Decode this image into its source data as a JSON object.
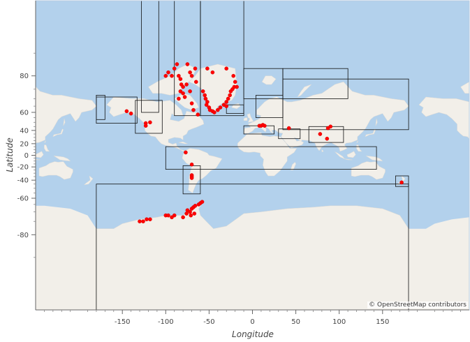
{
  "map": {
    "attribution": "© OpenStreetMap contributors",
    "xlabel": "Longitude",
    "ylabel": "Latitude",
    "ocean_color": "#b3d1ec",
    "land_color": "#f2efe9",
    "point_color": "#ff0000",
    "xlim": [
      -250,
      250
    ],
    "ylim_mercator_deg": [
      -89,
      89
    ],
    "x_ticks": [
      "-150",
      "-100",
      "-50",
      "0",
      "50",
      "100",
      "150"
    ],
    "y_ticks": [
      "80",
      "60",
      "40",
      "20",
      "0",
      "-20",
      "-40",
      "-60",
      "-80"
    ]
  },
  "chart_data": {
    "type": "scatter",
    "xlabel": "Longitude",
    "ylabel": "Latitude",
    "regions": [
      {
        "lon": [
          -180,
          -170
        ],
        "lat": [
          53,
          72
        ]
      },
      {
        "lon": [
          -180,
          -133
        ],
        "lat": [
          49,
          71
        ]
      },
      {
        "lon": [
          -135,
          -104
        ],
        "lat": [
          36,
          69
        ]
      },
      {
        "lon": [
          -128,
          -108
        ],
        "lat": [
          60,
          89
        ]
      },
      {
        "lon": [
          -90,
          -60
        ],
        "lat": [
          57,
          89
        ]
      },
      {
        "lon": [
          -60,
          -10
        ],
        "lat": [
          57,
          89
        ]
      },
      {
        "lon": [
          -30,
          -10
        ],
        "lat": [
          59,
          66
        ]
      },
      {
        "lon": [
          -10,
          35
        ],
        "lat": [
          70,
          82
        ]
      },
      {
        "lon": [
          35,
          110
        ],
        "lat": [
          70,
          82
        ]
      },
      {
        "lon": [
          4,
          35
        ],
        "lat": [
          55,
          72
        ]
      },
      {
        "lon": [
          35,
          180
        ],
        "lat": [
          41,
          79
        ]
      },
      {
        "lon": [
          -10,
          25
        ],
        "lat": [
          35,
          46
        ]
      },
      {
        "lon": [
          30,
          55
        ],
        "lat": [
          28,
          42
        ]
      },
      {
        "lon": [
          65,
          105
        ],
        "lat": [
          22,
          45
        ]
      },
      {
        "lon": [
          -100,
          143
        ],
        "lat": [
          -24,
          15
        ]
      },
      {
        "lon": [
          -80,
          -60
        ],
        "lat": [
          -56,
          -18
        ]
      },
      {
        "lon": [
          -180,
          180
        ],
        "lat": [
          -89,
          -45
        ]
      },
      {
        "lon": [
          165,
          180
        ],
        "lat": [
          -48,
          -34
        ]
      }
    ],
    "points": [
      {
        "lon": -145,
        "lat": 61
      },
      {
        "lon": -140,
        "lat": 59
      },
      {
        "lon": -123,
        "lat": 49
      },
      {
        "lon": -123,
        "lat": 46
      },
      {
        "lon": -118,
        "lat": 50
      },
      {
        "lon": -100,
        "lat": 80
      },
      {
        "lon": -97,
        "lat": 81
      },
      {
        "lon": -93,
        "lat": 80
      },
      {
        "lon": -90,
        "lat": 82
      },
      {
        "lon": -87,
        "lat": 83
      },
      {
        "lon": -85,
        "lat": 80
      },
      {
        "lon": -83,
        "lat": 79
      },
      {
        "lon": -82,
        "lat": 77
      },
      {
        "lon": -80,
        "lat": 76
      },
      {
        "lon": -83,
        "lat": 74
      },
      {
        "lon": -80,
        "lat": 73
      },
      {
        "lon": -85,
        "lat": 70
      },
      {
        "lon": -78,
        "lat": 71
      },
      {
        "lon": -75,
        "lat": 83
      },
      {
        "lon": -72,
        "lat": 81
      },
      {
        "lon": -70,
        "lat": 80
      },
      {
        "lon": -76,
        "lat": 77
      },
      {
        "lon": -72,
        "lat": 74
      },
      {
        "lon": -66,
        "lat": 82
      },
      {
        "lon": -65,
        "lat": 78
      },
      {
        "lon": -70,
        "lat": 67
      },
      {
        "lon": -68,
        "lat": 62
      },
      {
        "lon": -63,
        "lat": 58
      },
      {
        "lon": -52,
        "lat": 82
      },
      {
        "lon": -46,
        "lat": 81
      },
      {
        "lon": -30,
        "lat": 82
      },
      {
        "lon": -22,
        "lat": 80
      },
      {
        "lon": -20,
        "lat": 78
      },
      {
        "lon": -55,
        "lat": 72
      },
      {
        "lon": -57,
        "lat": 74
      },
      {
        "lon": -54,
        "lat": 70
      },
      {
        "lon": -52,
        "lat": 68
      },
      {
        "lon": -53,
        "lat": 66
      },
      {
        "lon": -50,
        "lat": 64
      },
      {
        "lon": -49,
        "lat": 62
      },
      {
        "lon": -46,
        "lat": 61
      },
      {
        "lon": -44,
        "lat": 60
      },
      {
        "lon": -40,
        "lat": 62
      },
      {
        "lon": -37,
        "lat": 64
      },
      {
        "lon": -33,
        "lat": 66
      },
      {
        "lon": -30,
        "lat": 68
      },
      {
        "lon": -28,
        "lat": 70
      },
      {
        "lon": -26,
        "lat": 72
      },
      {
        "lon": -25,
        "lat": 74
      },
      {
        "lon": -23,
        "lat": 75
      },
      {
        "lon": -21,
        "lat": 76
      },
      {
        "lon": -18,
        "lat": 76
      },
      {
        "lon": -30,
        "lat": 65
      },
      {
        "lon": 8,
        "lat": 46
      },
      {
        "lon": 10,
        "lat": 46
      },
      {
        "lon": 12,
        "lat": 47
      },
      {
        "lon": 14,
        "lat": 46
      },
      {
        "lon": 42,
        "lat": 43
      },
      {
        "lon": 78,
        "lat": 35
      },
      {
        "lon": 87,
        "lat": 43
      },
      {
        "lon": 90,
        "lat": 45
      },
      {
        "lon": 86,
        "lat": 28
      },
      {
        "lon": -77,
        "lat": 5
      },
      {
        "lon": -70,
        "lat": -16
      },
      {
        "lon": -70,
        "lat": -33
      },
      {
        "lon": -70,
        "lat": -35
      },
      {
        "lon": -70,
        "lat": -37
      },
      {
        "lon": 172,
        "lat": -43
      },
      {
        "lon": -130,
        "lat": -75
      },
      {
        "lon": -126,
        "lat": -75
      },
      {
        "lon": -122,
        "lat": -74
      },
      {
        "lon": -118,
        "lat": -74
      },
      {
        "lon": -100,
        "lat": -72
      },
      {
        "lon": -97,
        "lat": -72
      },
      {
        "lon": -93,
        "lat": -73
      },
      {
        "lon": -90,
        "lat": -72
      },
      {
        "lon": -80,
        "lat": -73
      },
      {
        "lon": -76,
        "lat": -71
      },
      {
        "lon": -75,
        "lat": -69
      },
      {
        "lon": -72,
        "lat": -70
      },
      {
        "lon": -70,
        "lat": -68
      },
      {
        "lon": -68,
        "lat": -67
      },
      {
        "lon": -66,
        "lat": -66
      },
      {
        "lon": -62,
        "lat": -65
      },
      {
        "lon": -60,
        "lat": -64
      },
      {
        "lon": -58,
        "lat": -63
      },
      {
        "lon": -67,
        "lat": -71
      },
      {
        "lon": -71,
        "lat": -72
      }
    ]
  }
}
